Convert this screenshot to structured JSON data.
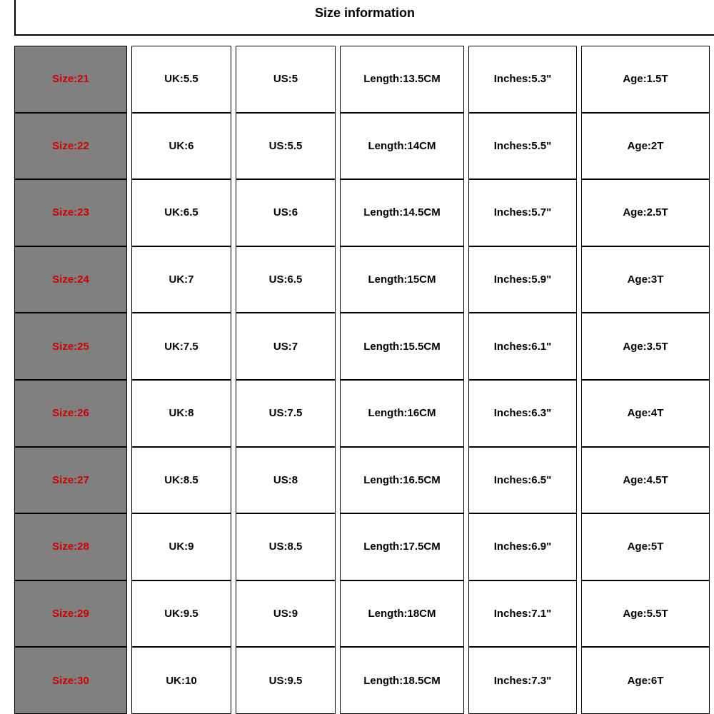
{
  "title": "Size information",
  "table": {
    "type": "table",
    "background_color": "#ffffff",
    "border_color": "#000000",
    "header_cell_color": "#808080",
    "size_text_color": "#cc0000",
    "data_text_color": "#000000",
    "font_size": 15,
    "font_weight": "bold",
    "row_height": 93.6,
    "cell_gap": 6,
    "columns": [
      {
        "key": "size",
        "width": 158,
        "bg": "#808080",
        "color": "#cc0000"
      },
      {
        "key": "uk",
        "width": 140,
        "bg": "#ffffff",
        "color": "#000000"
      },
      {
        "key": "us",
        "width": 140,
        "bg": "#ffffff",
        "color": "#000000"
      },
      {
        "key": "len",
        "width": 174,
        "bg": "#ffffff",
        "color": "#000000"
      },
      {
        "key": "inches",
        "width": 152,
        "bg": "#ffffff",
        "color": "#000000"
      },
      {
        "key": "age",
        "width": 180,
        "bg": "#ffffff",
        "color": "#000000"
      }
    ],
    "rows": [
      {
        "size": "Size:21",
        "uk": "UK:5.5",
        "us": "US:5",
        "len": "Length:13.5CM",
        "inches": "Inches:5.3\"",
        "age": "Age:1.5T"
      },
      {
        "size": "Size:22",
        "uk": "UK:6",
        "us": "US:5.5",
        "len": "Length:14CM",
        "inches": "Inches:5.5\"",
        "age": "Age:2T"
      },
      {
        "size": "Size:23",
        "uk": "UK:6.5",
        "us": "US:6",
        "len": "Length:14.5CM",
        "inches": "Inches:5.7\"",
        "age": "Age:2.5T"
      },
      {
        "size": "Size:24",
        "uk": "UK:7",
        "us": "US:6.5",
        "len": "Length:15CM",
        "inches": "Inches:5.9\"",
        "age": "Age:3T"
      },
      {
        "size": "Size:25",
        "uk": "UK:7.5",
        "us": "US:7",
        "len": "Length:15.5CM",
        "inches": "Inches:6.1\"",
        "age": "Age:3.5T"
      },
      {
        "size": "Size:26",
        "uk": "UK:8",
        "us": "US:7.5",
        "len": "Length:16CM",
        "inches": "Inches:6.3\"",
        "age": "Age:4T"
      },
      {
        "size": "Size:27",
        "uk": "UK:8.5",
        "us": "US:8",
        "len": "Length:16.5CM",
        "inches": "Inches:6.5\"",
        "age": "Age:4.5T"
      },
      {
        "size": "Size:28",
        "uk": "UK:9",
        "us": "US:8.5",
        "len": "Length:17.5CM",
        "inches": "Inches:6.9\"",
        "age": "Age:5T"
      },
      {
        "size": "Size:29",
        "uk": "UK:9.5",
        "us": "US:9",
        "len": "Length:18CM",
        "inches": "Inches:7.1\"",
        "age": "Age:5.5T"
      },
      {
        "size": "Size:30",
        "uk": "UK:10",
        "us": "US:9.5",
        "len": "Length:18.5CM",
        "inches": "Inches:7.3\"",
        "age": "Age:6T"
      }
    ]
  }
}
